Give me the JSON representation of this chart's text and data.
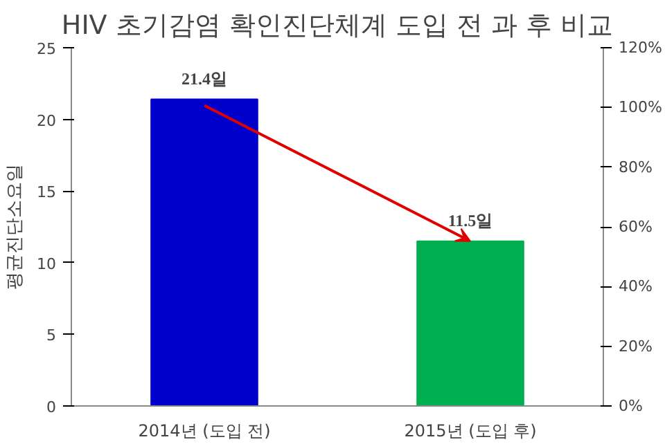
{
  "chart_data": {
    "type": "bar",
    "title": "HIV 초기감염 확인진단체계 도입 전 과 후 비교",
    "ylabel": "평균진단소요일",
    "categories": [
      "2014년 (도입 전)",
      "2015년 (도입 후)"
    ],
    "values": [
      21.4,
      11.5
    ],
    "colors": [
      "#0000cc",
      "#00b050"
    ],
    "value_labels": [
      "21.4일",
      "11.5일"
    ],
    "ylim": [
      0,
      25
    ],
    "yticks": [
      0,
      5,
      10,
      15,
      20,
      25
    ],
    "y2lim": [
      0,
      120
    ],
    "y2ticks": [
      {
        "value": 0,
        "label": "0%"
      },
      {
        "value": 20,
        "label": "20%"
      },
      {
        "value": 40,
        "label": "40%"
      },
      {
        "value": 60,
        "label": "60%"
      },
      {
        "value": 80,
        "label": "80%"
      },
      {
        "value": 100,
        "label": "100%"
      },
      {
        "value": 120,
        "label": "120%"
      }
    ],
    "grid": false
  }
}
